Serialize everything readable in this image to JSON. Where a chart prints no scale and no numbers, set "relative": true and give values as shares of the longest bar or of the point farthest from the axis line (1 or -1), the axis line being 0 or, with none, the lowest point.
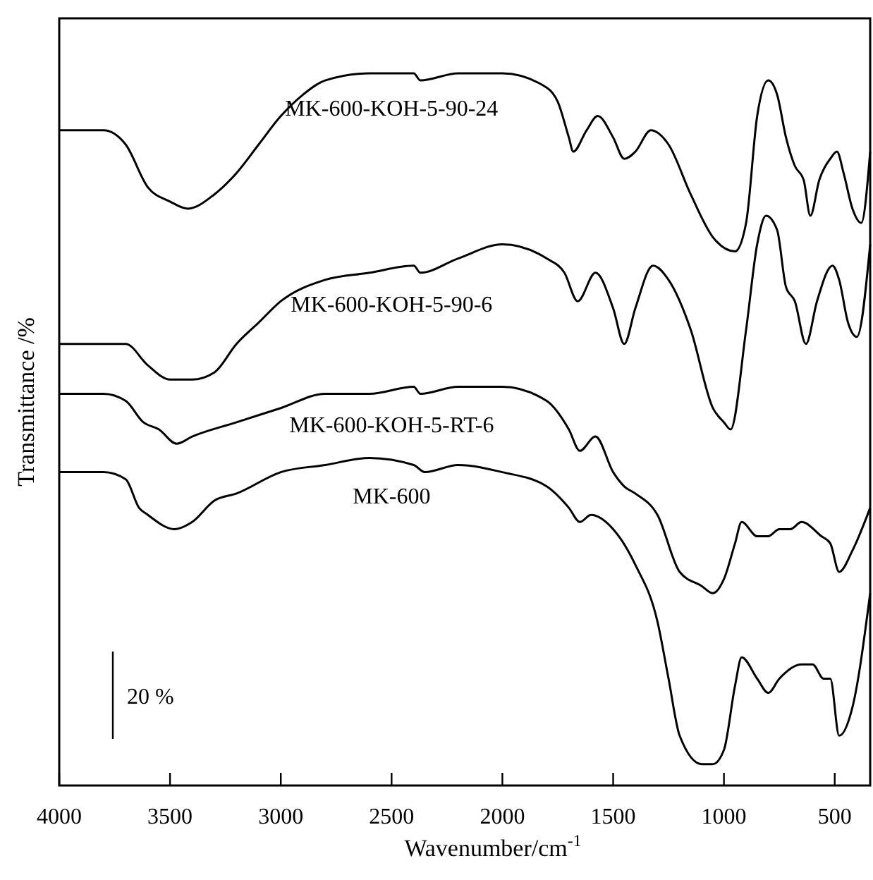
{
  "chart_data": {
    "type": "line",
    "relative": true,
    "xlabel": "Wavenumber/cm$^{-1}$",
    "ylabel": "Transmittance /%",
    "xlim": [
      4000,
      340
    ],
    "xticks": [
      4000,
      3500,
      3000,
      2500,
      2000,
      1500,
      1000,
      500
    ],
    "annotations": [
      "20 %"
    ],
    "x": [
      4000,
      3800,
      3700,
      3600,
      3500,
      3420,
      3300,
      3200,
      3100,
      3000,
      2900,
      2800,
      2600,
      2400,
      2370,
      2200,
      2000,
      1800,
      1750,
      1700,
      1680,
      1620,
      1570,
      1500,
      1450,
      1400,
      1330,
      1250,
      1150,
      1050,
      950,
      900,
      850,
      800,
      760,
      720,
      680,
      640,
      610,
      570,
      520,
      490,
      460,
      420,
      380,
      340
    ],
    "series": [
      {
        "name": "MK-600-KOH-5-90-24",
        "color": "#000000",
        "values": [
          0.92,
          0.92,
          0.9,
          0.84,
          0.82,
          0.81,
          0.83,
          0.86,
          0.9,
          0.94,
          0.97,
          0.99,
          1.0,
          1.0,
          0.99,
          1.0,
          1.0,
          0.98,
          0.96,
          0.91,
          0.89,
          0.92,
          0.94,
          0.91,
          0.88,
          0.89,
          0.92,
          0.9,
          0.83,
          0.77,
          0.75,
          0.79,
          0.94,
          0.99,
          0.97,
          0.91,
          0.87,
          0.85,
          0.8,
          0.85,
          0.88,
          0.89,
          0.86,
          0.81,
          0.79,
          0.89
        ]
      },
      {
        "name": "MK-600-KOH-5-90-6",
        "color": "#000000",
        "x": [
          4000,
          3800,
          3700,
          3600,
          3500,
          3400,
          3300,
          3200,
          3100,
          3000,
          2800,
          2600,
          2400,
          2370,
          2200,
          2000,
          1800,
          1720,
          1660,
          1580,
          1500,
          1450,
          1400,
          1320,
          1250,
          1150,
          1050,
          1000,
          970,
          900,
          850,
          810,
          760,
          720,
          680,
          630,
          580,
          510,
          480,
          440,
          400,
          340
        ],
        "values": [
          0.62,
          0.62,
          0.62,
          0.59,
          0.57,
          0.57,
          0.58,
          0.62,
          0.65,
          0.68,
          0.71,
          0.72,
          0.73,
          0.72,
          0.74,
          0.76,
          0.74,
          0.72,
          0.68,
          0.72,
          0.67,
          0.62,
          0.67,
          0.73,
          0.71,
          0.64,
          0.53,
          0.51,
          0.5,
          0.64,
          0.76,
          0.8,
          0.78,
          0.7,
          0.68,
          0.62,
          0.68,
          0.73,
          0.71,
          0.65,
          0.63,
          0.76
        ]
      },
      {
        "name": "MK-600-KOH-5-RT-6",
        "color": "#000000",
        "x": [
          4000,
          3800,
          3700,
          3620,
          3550,
          3470,
          3400,
          3200,
          3000,
          2800,
          2600,
          2400,
          2370,
          2200,
          2000,
          1800,
          1700,
          1650,
          1580,
          1500,
          1450,
          1400,
          1300,
          1200,
          1100,
          1050,
          1000,
          950,
          920,
          850,
          800,
          750,
          700,
          650,
          560,
          520,
          480,
          420,
          340
        ],
        "values": [
          0.55,
          0.55,
          0.54,
          0.51,
          0.5,
          0.48,
          0.49,
          0.51,
          0.53,
          0.55,
          0.55,
          0.56,
          0.55,
          0.56,
          0.56,
          0.54,
          0.5,
          0.47,
          0.49,
          0.44,
          0.42,
          0.41,
          0.38,
          0.3,
          0.28,
          0.27,
          0.29,
          0.34,
          0.37,
          0.35,
          0.35,
          0.36,
          0.36,
          0.37,
          0.35,
          0.34,
          0.3,
          0.33,
          0.39
        ]
      },
      {
        "name": "MK-600",
        "color": "#000000",
        "x": [
          4000,
          3800,
          3700,
          3640,
          3600,
          3480,
          3400,
          3300,
          3200,
          3000,
          2800,
          2600,
          2400,
          2350,
          2200,
          2000,
          1800,
          1700,
          1650,
          1600,
          1500,
          1400,
          1300,
          1250,
          1200,
          1100,
          1050,
          1000,
          950,
          920,
          850,
          800,
          750,
          650,
          600,
          550,
          520,
          480,
          420,
          340
        ],
        "values": [
          0.44,
          0.44,
          0.43,
          0.39,
          0.38,
          0.36,
          0.37,
          0.4,
          0.41,
          0.44,
          0.45,
          0.46,
          0.45,
          0.44,
          0.45,
          0.44,
          0.42,
          0.39,
          0.37,
          0.38,
          0.36,
          0.31,
          0.23,
          0.15,
          0.07,
          0.03,
          0.03,
          0.05,
          0.14,
          0.18,
          0.15,
          0.13,
          0.15,
          0.17,
          0.17,
          0.15,
          0.15,
          0.07,
          0.11,
          0.27
        ]
      }
    ]
  }
}
